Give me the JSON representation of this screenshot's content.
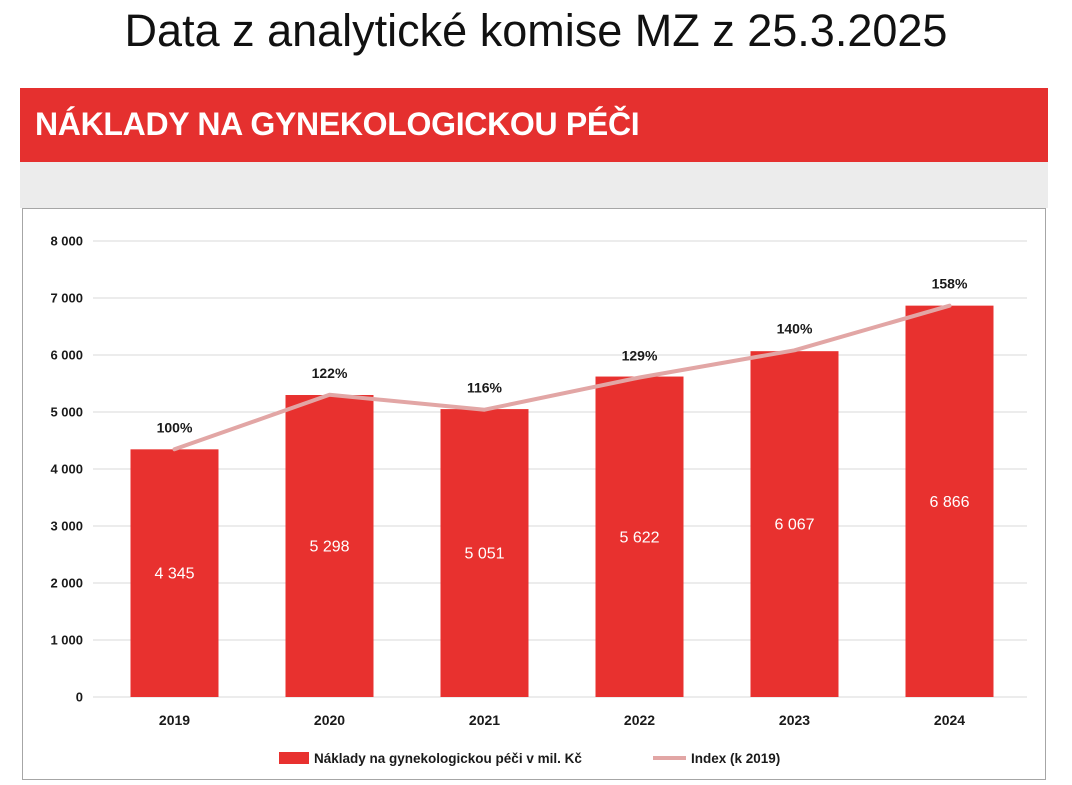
{
  "header": {
    "title": "Data z analytické komise MZ z 25.3.2025"
  },
  "colors": {
    "banner": "#e5302f",
    "bar": "#e8312f",
    "index_line": "#e2a6a5",
    "grid": "#d9d9d9",
    "band": "#ececec"
  },
  "chart_data": {
    "type": "bar",
    "title": "NÁKLADY NA GYNEKOLOGICKOU PÉČI",
    "categories": [
      "2019",
      "2020",
      "2021",
      "2022",
      "2023",
      "2024"
    ],
    "series": [
      {
        "name": "Náklady na gynekologickou péči v mil. Kč",
        "type": "bar",
        "values": [
          4345,
          5298,
          5051,
          5622,
          6067,
          6866
        ],
        "labels": [
          "4 345",
          "5 298",
          "5 051",
          "5 622",
          "6 067",
          "6 866"
        ]
      },
      {
        "name": "Index (k 2019)",
        "type": "line",
        "axis": "secondary",
        "values": [
          100,
          122,
          116,
          129,
          140,
          158
        ],
        "labels": [
          "100%",
          "122%",
          "116%",
          "129%",
          "140%",
          "158%"
        ]
      }
    ],
    "y_ticks": [
      0,
      1000,
      2000,
      3000,
      4000,
      5000,
      6000,
      7000,
      8000
    ],
    "y_tick_labels": [
      "0",
      "1 000",
      "2 000",
      "3 000",
      "4 000",
      "5 000",
      "6 000",
      "7 000",
      "8 000"
    ],
    "ylim": [
      0,
      8000
    ],
    "grid": true,
    "legend": "bottom"
  }
}
